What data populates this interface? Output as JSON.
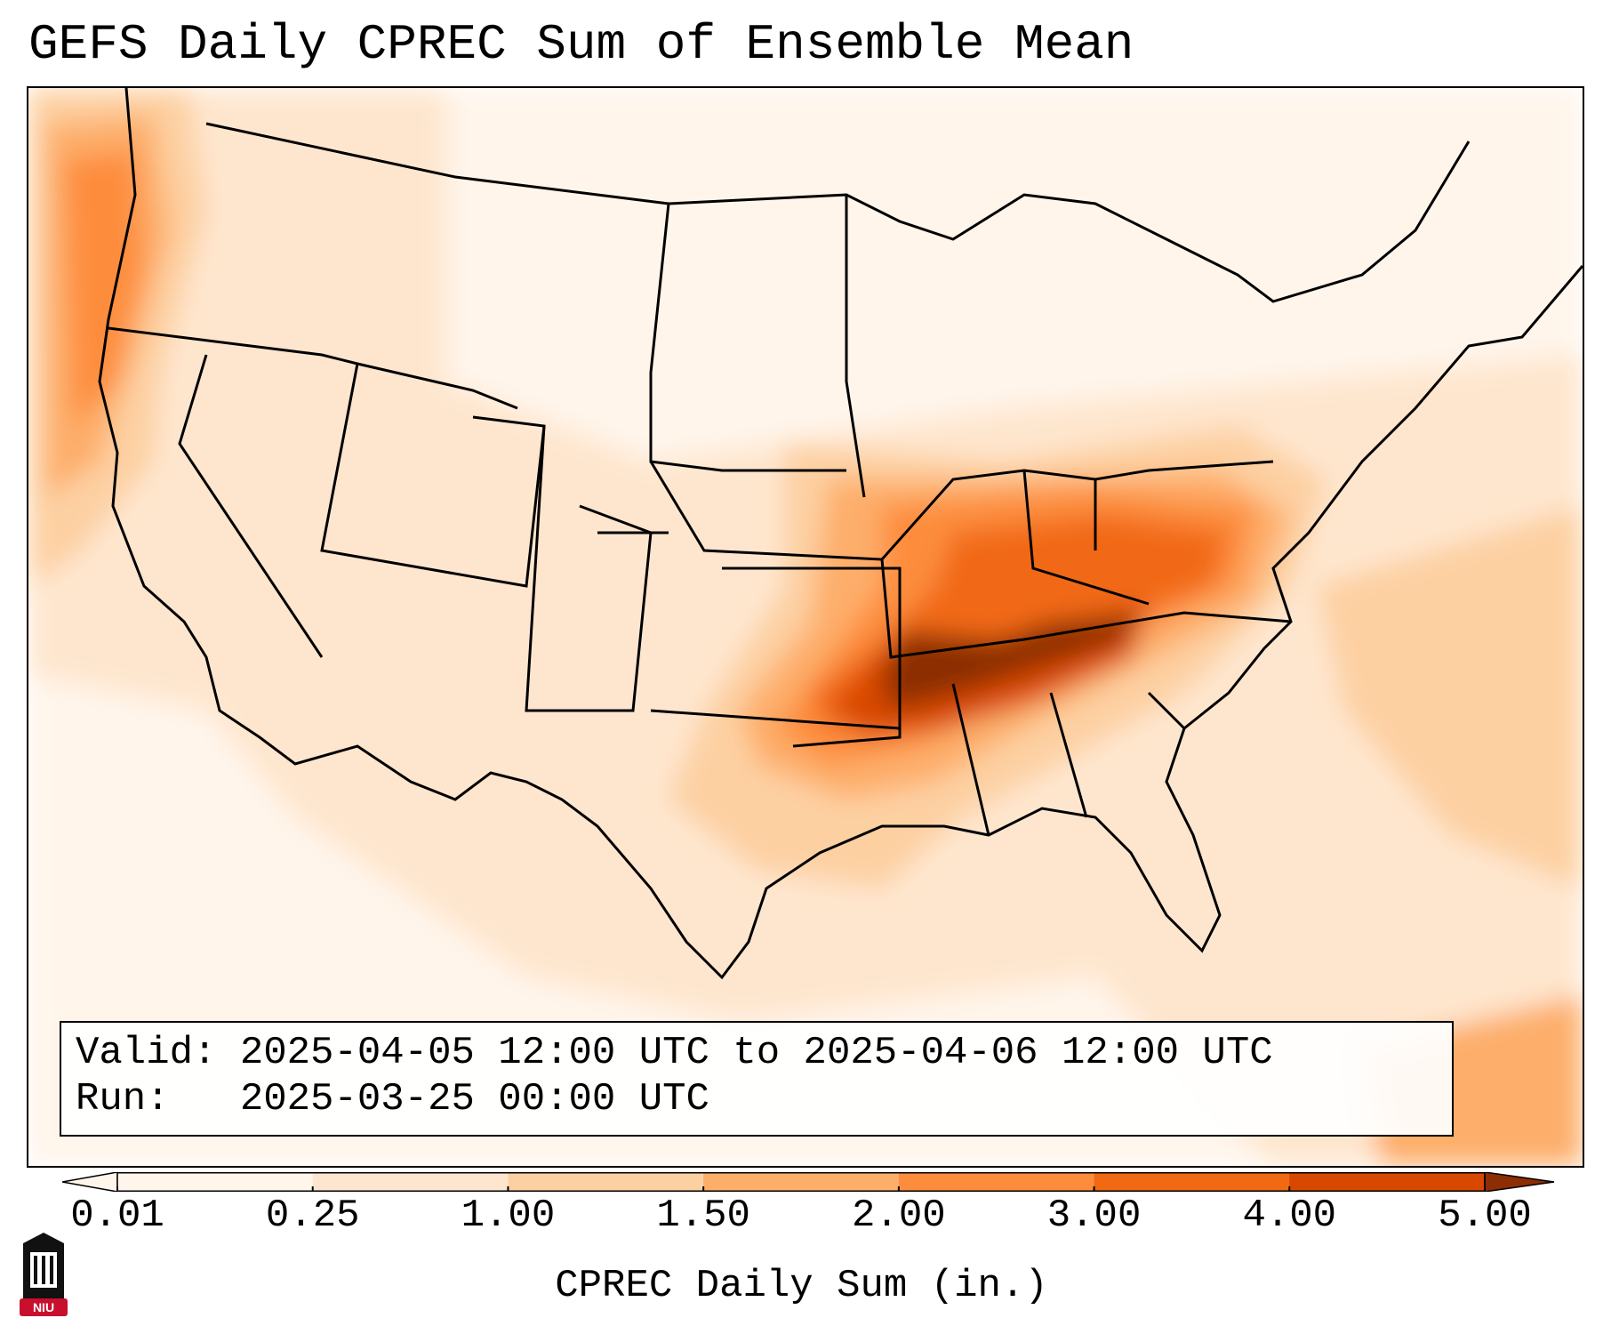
{
  "title": "GEFS Daily CPREC Sum of Ensemble Mean",
  "info": {
    "valid_label": "Valid:",
    "valid_value": "2025-04-05 12:00 UTC to 2025-04-06 12:00 UTC",
    "run_label": "Run:",
    "run_value": "2025-03-25 00:00 UTC"
  },
  "colorbar": {
    "ticks": [
      "0.01",
      "0.25",
      "1.00",
      "1.50",
      "2.00",
      "3.00",
      "4.00",
      "5.00"
    ],
    "colors": [
      "#fff5eb",
      "#fee6ce",
      "#fdd0a2",
      "#fdae6b",
      "#fd8d3c",
      "#f16913",
      "#d94801",
      "#8c2d04"
    ],
    "label": "CPREC Daily Sum (in.)"
  },
  "logo_text": "NIU"
}
